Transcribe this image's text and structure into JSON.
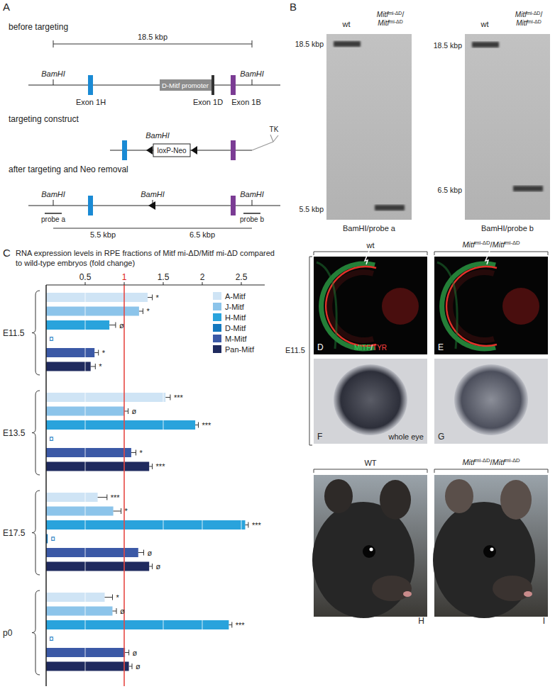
{
  "genotype": [
    "Mitf",
    "mi-ΔD",
    "/",
    "Mitf",
    "mi-ΔD"
  ],
  "panels": {
    "A": {
      "label": "A",
      "before": {
        "title": "before targeting",
        "span": "18.5 kbp",
        "sites": [
          "BamHI",
          "BamHI"
        ],
        "exons": [
          "Exon 1H",
          "Exon 1D",
          "Exon 1B"
        ],
        "promoter": "D-Mitf promoter"
      },
      "construct": {
        "title": "targeting construct",
        "site": "BamHI",
        "cassette": "loxP-Neo",
        "selection": "TK"
      },
      "after": {
        "title": "after targeting and Neo removal",
        "sites": [
          "BamHI",
          "BamHI",
          "BamHI"
        ],
        "probes": [
          "probe a",
          "probe b"
        ],
        "spans": [
          "5.5 kbp",
          "6.5 kbp"
        ]
      }
    },
    "B": {
      "label": "B",
      "lane_wt": "wt",
      "gels": [
        {
          "sizes": [
            "18.5 kbp",
            "5.5 kbp"
          ],
          "caption": "BamHI/probe a"
        },
        {
          "sizes": [
            "18.5 kbp",
            "6.5 kbp"
          ],
          "caption": "BamHI/probe b"
        }
      ]
    },
    "C": {
      "label": "C"
    },
    "images": {
      "stage": "E11.5",
      "wt_top": "wt",
      "wt_bottom": "WT",
      "labels": [
        "D",
        "E",
        "F",
        "G",
        "H",
        "I"
      ],
      "stain": [
        "MITF",
        "/",
        "TYR"
      ],
      "whole_eye": "whole eye"
    }
  },
  "chart_data": {
    "type": "bar",
    "orientation": "horizontal",
    "title": "RNA expression levels in RPE fractions of Mitf mi-ΔD/Mitf mi-ΔD compared to wild-type embryos (fold change)",
    "categories": [
      "E11.5",
      "E13.5",
      "E17.5",
      "p0"
    ],
    "series": [
      {
        "name": "A-Mitf",
        "color": "#cfe4f5",
        "values": [
          1.3,
          1.53,
          0.66,
          0.75
        ],
        "errors": [
          0.06,
          0.06,
          0.12,
          0.1
        ],
        "annotations": [
          "*",
          "***",
          "***",
          "*"
        ]
      },
      {
        "name": "J-Mitf",
        "color": "#8cc4ea",
        "values": [
          1.19,
          1.0,
          0.86,
          0.85
        ],
        "errors": [
          0.05,
          0.05,
          0.1,
          0.05
        ],
        "annotations": [
          "*",
          "ø",
          "*",
          "ø"
        ]
      },
      {
        "name": "H-Mitf",
        "color": "#29a3dc",
        "values": [
          0.81,
          1.91,
          2.55,
          2.34
        ],
        "errors": [
          0.08,
          0.04,
          0.04,
          0.04
        ],
        "annotations": [
          "ø",
          "***",
          "***",
          "***"
        ]
      },
      {
        "name": "D-Mitf",
        "color": "#1478be",
        "values": [
          0,
          0,
          0.02,
          0
        ],
        "errors": [
          null,
          null,
          null,
          null
        ],
        "annotations": [
          "¤",
          "¤",
          "¤",
          "¤"
        ]
      },
      {
        "name": "M-Mitf",
        "color": "#3b59a6",
        "values": [
          0.62,
          1.09,
          1.18,
          1.01
        ],
        "errors": [
          0.05,
          0.06,
          0.07,
          0.05
        ],
        "annotations": [
          "*",
          "*",
          "ø",
          "ø"
        ]
      },
      {
        "name": "Pan-Mitf",
        "color": "#1f2a5e",
        "values": [
          0.57,
          1.32,
          1.32,
          1.06
        ],
        "errors": [
          0.06,
          0.04,
          0.04,
          0.04
        ],
        "annotations": [
          "*",
          "***",
          "ø",
          "ø"
        ]
      }
    ],
    "xlim": [
      0,
      2.8
    ],
    "xticks": [
      0.5,
      1,
      1.5,
      2,
      2.5
    ],
    "reference_value": 1,
    "grid": true,
    "legend": "upper right"
  }
}
